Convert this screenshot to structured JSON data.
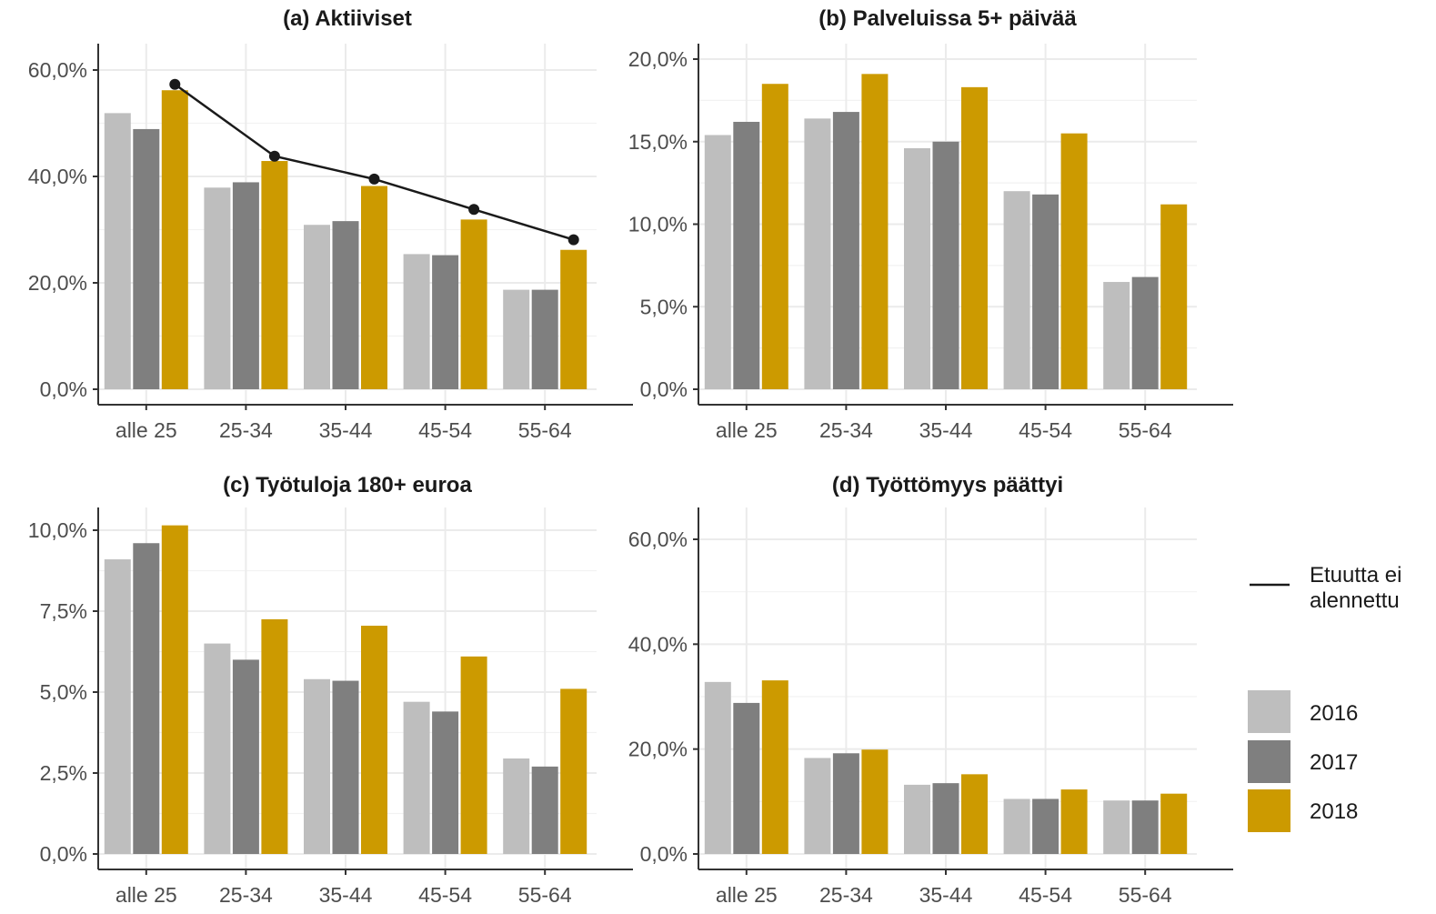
{
  "colors": {
    "2016": "#bebebe",
    "2017": "#7f7f7f",
    "2018": "#cc9a00",
    "line": "#1a1a1a",
    "grid": "#ebebeb"
  },
  "legend": {
    "line_label_1": "Etuutta ei",
    "line_label_2": "alennettu",
    "years": [
      "2016",
      "2017",
      "2018"
    ]
  },
  "chart_data": [
    {
      "type": "bar",
      "title": "(a) Aktiiviset",
      "categories": [
        "alle 25",
        "25-34",
        "35-44",
        "45-54",
        "55-64"
      ],
      "series": [
        {
          "name": "2016",
          "values": [
            51.9,
            37.9,
            30.9,
            25.4,
            18.7
          ]
        },
        {
          "name": "2017",
          "values": [
            48.9,
            38.9,
            31.6,
            25.2,
            18.7
          ]
        },
        {
          "name": "2018",
          "values": [
            56.2,
            42.9,
            38.2,
            31.9,
            26.2
          ]
        }
      ],
      "line": {
        "name": "Etuutta ei alennettu",
        "values": [
          57.3,
          43.8,
          39.5,
          33.8,
          28.1
        ]
      },
      "ylim": [
        0,
        60
      ],
      "yticks": [
        0,
        20,
        40,
        60
      ],
      "ytick_labels": [
        "0,0%",
        "20,0%",
        "40,0%",
        "60,0%"
      ]
    },
    {
      "type": "bar",
      "title": "(b) Palveluissa 5+ päivää",
      "categories": [
        "alle 25",
        "25-34",
        "35-44",
        "45-54",
        "55-64"
      ],
      "series": [
        {
          "name": "2016",
          "values": [
            15.4,
            16.4,
            14.6,
            12.0,
            6.5
          ]
        },
        {
          "name": "2017",
          "values": [
            16.2,
            16.8,
            15.0,
            11.8,
            6.8
          ]
        },
        {
          "name": "2018",
          "values": [
            18.5,
            19.1,
            18.3,
            15.5,
            11.2
          ]
        }
      ],
      "ylim": [
        0,
        20
      ],
      "yticks": [
        0,
        5,
        10,
        15,
        20
      ],
      "ytick_labels": [
        "0,0%",
        "5,0%",
        "10,0%",
        "15,0%",
        "20,0%"
      ]
    },
    {
      "type": "bar",
      "title": "(c) Työtuloja 180+ euroa",
      "categories": [
        "alle 25",
        "25-34",
        "35-44",
        "45-54",
        "55-64"
      ],
      "series": [
        {
          "name": "2016",
          "values": [
            9.1,
            6.5,
            5.4,
            4.7,
            2.95
          ]
        },
        {
          "name": "2017",
          "values": [
            9.6,
            6.0,
            5.35,
            4.4,
            2.7
          ]
        },
        {
          "name": "2018",
          "values": [
            10.15,
            7.25,
            7.05,
            6.1,
            5.1
          ]
        }
      ],
      "ylim": [
        0,
        10
      ],
      "yticks": [
        0,
        2.5,
        5,
        7.5,
        10
      ],
      "ytick_labels": [
        "0,0%",
        "2,5%",
        "5,0%",
        "7,5%",
        "10,0%"
      ]
    },
    {
      "type": "bar",
      "title": "(d) Työttömyys päättyi",
      "categories": [
        "alle 25",
        "25-34",
        "35-44",
        "45-54",
        "55-64"
      ],
      "series": [
        {
          "name": "2016",
          "values": [
            32.8,
            18.3,
            13.2,
            10.5,
            10.2
          ]
        },
        {
          "name": "2017",
          "values": [
            28.8,
            19.2,
            13.5,
            10.5,
            10.2
          ]
        },
        {
          "name": "2018",
          "values": [
            33.1,
            19.9,
            15.2,
            12.3,
            11.5
          ]
        }
      ],
      "ylim": [
        0,
        60
      ],
      "yticks": [
        0,
        20,
        40,
        60
      ],
      "ytick_labels": [
        "0,0%",
        "20,0%",
        "40,0%",
        "60,0%"
      ]
    }
  ]
}
